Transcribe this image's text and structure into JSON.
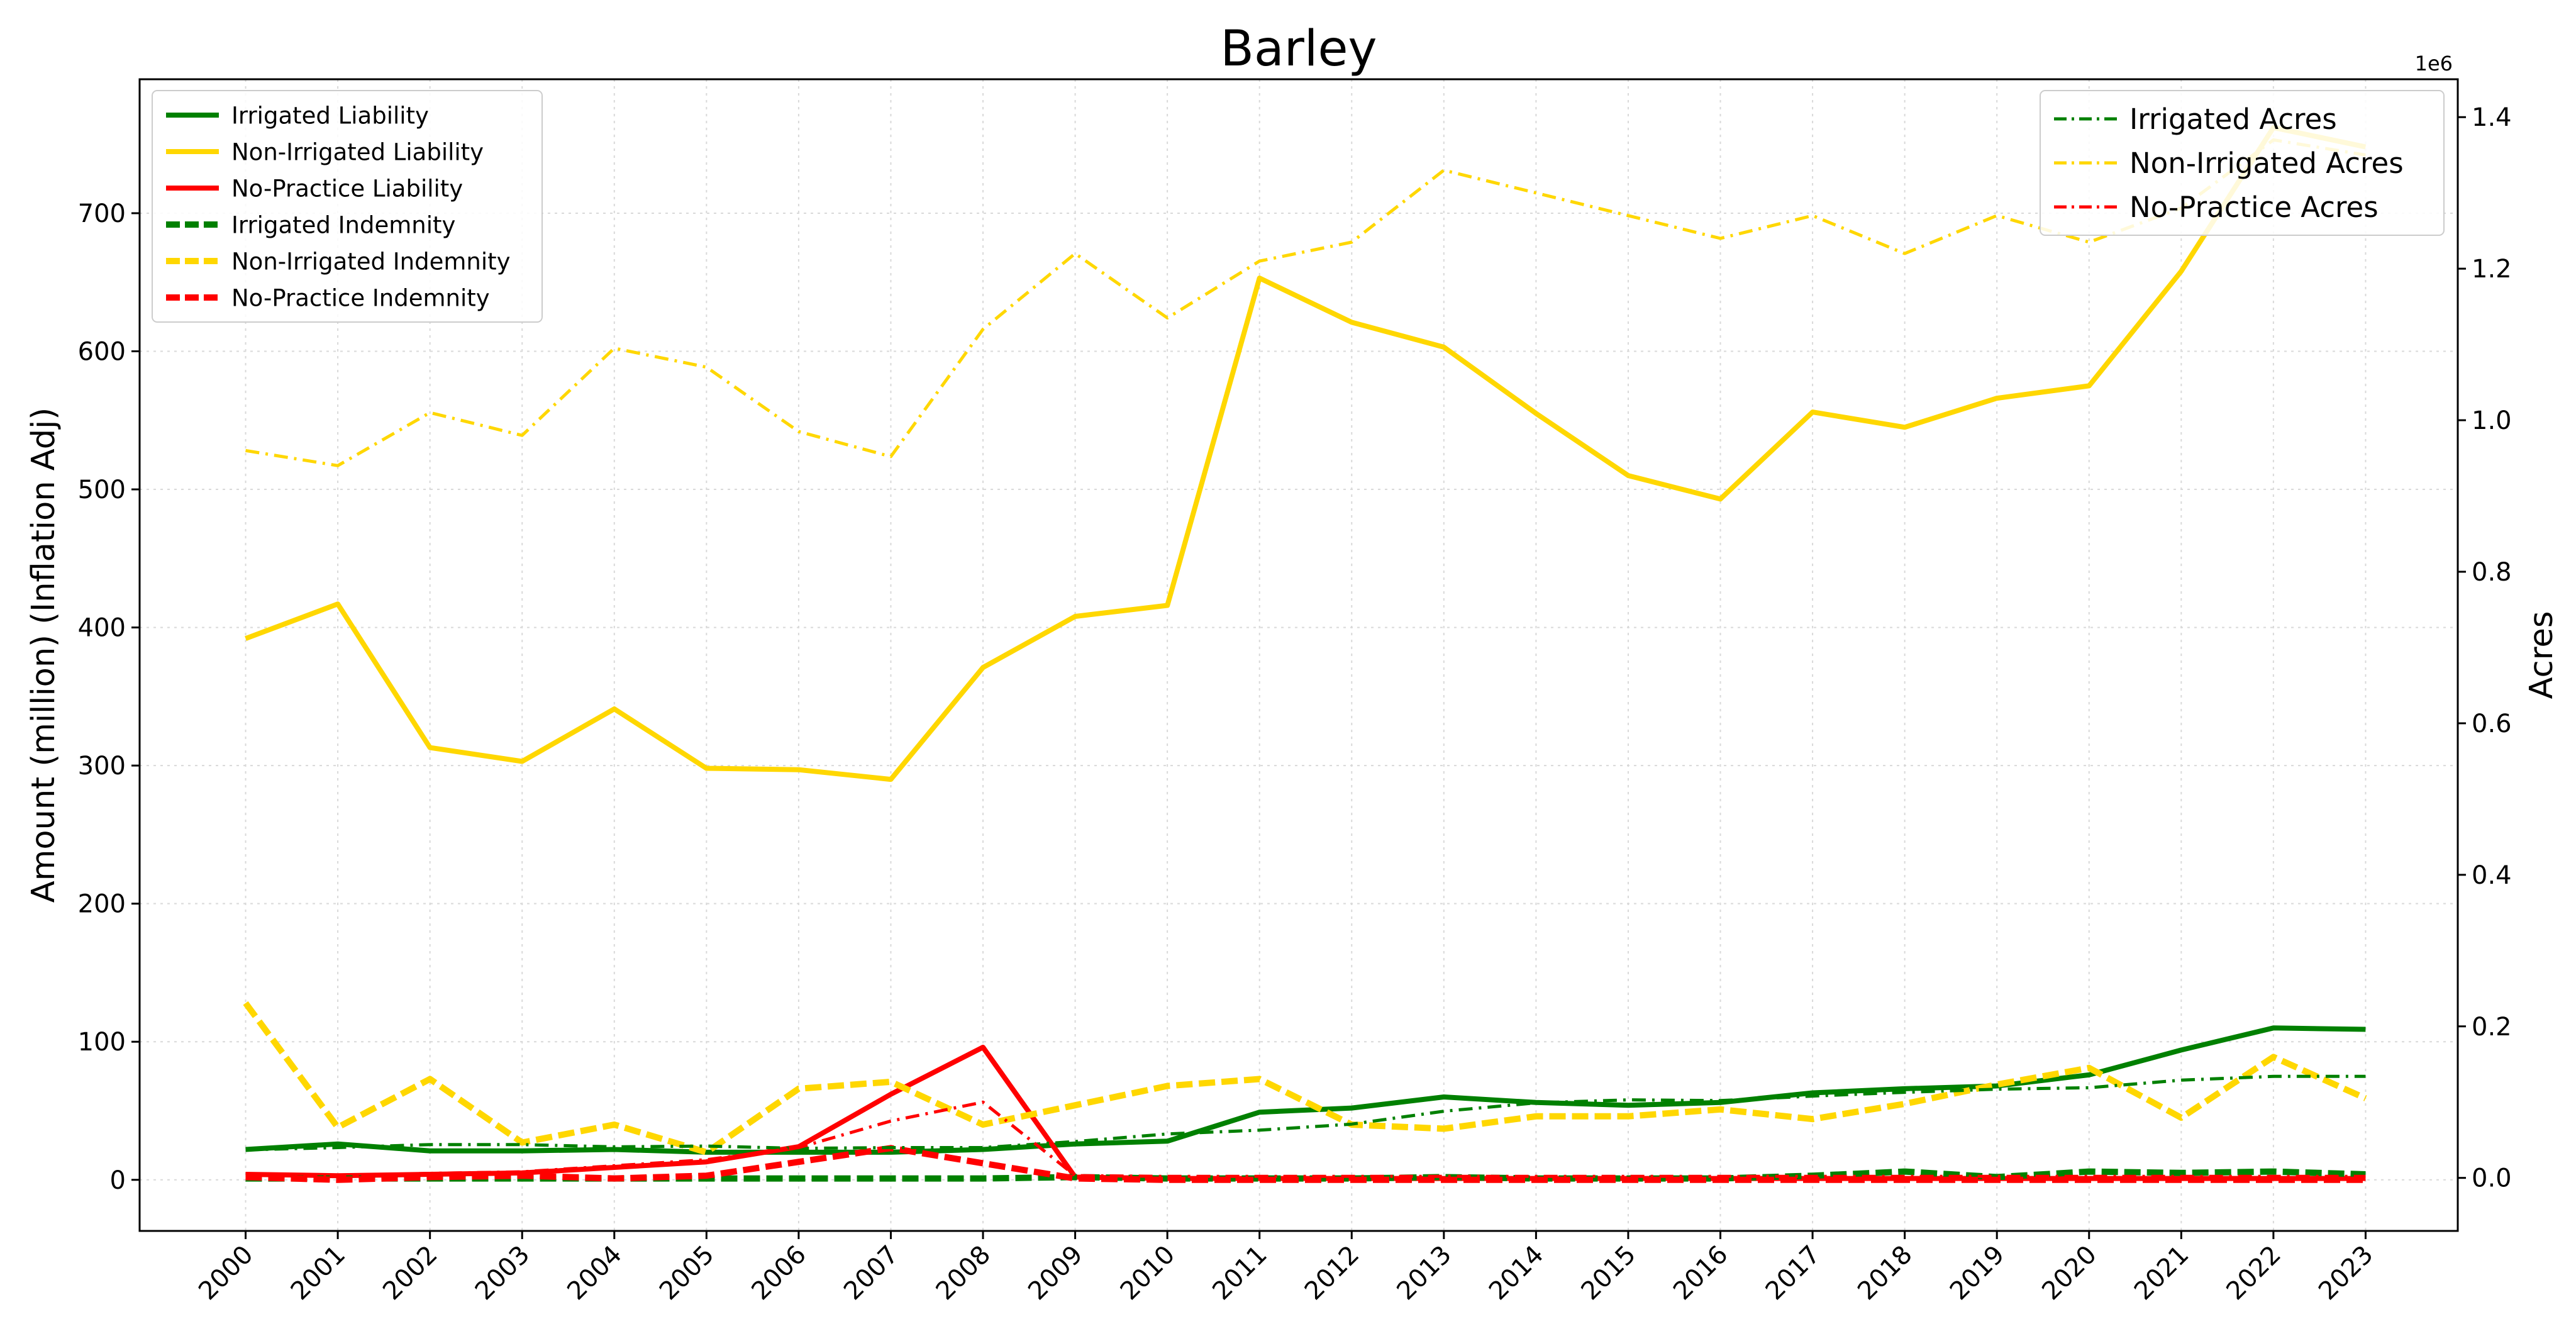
{
  "chart_data": {
    "type": "line",
    "title": "Barley",
    "x": [
      "2000",
      "2001",
      "2002",
      "2003",
      "2004",
      "2005",
      "2006",
      "2007",
      "2008",
      "2009",
      "2010",
      "2011",
      "2012",
      "2013",
      "2014",
      "2015",
      "2016",
      "2017",
      "2018",
      "2019",
      "2020",
      "2021",
      "2022",
      "2023"
    ],
    "ylabel": "Amount (million) (Inflation Adj)",
    "ylim": [
      -37,
      797
    ],
    "yticks": [
      0,
      100,
      200,
      300,
      400,
      500,
      600,
      700
    ],
    "y2label": "Acres",
    "y2_offset_text": "1e6",
    "y2lim": [
      -0.07,
      1.45
    ],
    "y2ticks": [
      0.0,
      0.2,
      0.4,
      0.6,
      0.8,
      1.0,
      1.2,
      1.4
    ],
    "grid": true,
    "legend_left_position": "upper-left",
    "legend_right_position": "upper-right",
    "series": [
      {
        "name": "Irrigated Liability",
        "axis": "left",
        "color": "#008000",
        "style": "solid",
        "values": [
          22,
          26,
          21,
          21,
          22,
          20,
          20,
          20,
          22,
          26,
          28,
          49,
          52,
          60,
          56,
          54,
          56,
          63,
          66,
          68,
          76,
          94,
          110,
          109
        ]
      },
      {
        "name": "Non-Irrigated Liability",
        "axis": "left",
        "color": "#ffd700",
        "style": "solid",
        "values": [
          392,
          417,
          313,
          303,
          341,
          298,
          297,
          290,
          371,
          408,
          416,
          653,
          621,
          603,
          555,
          510,
          493,
          556,
          545,
          566,
          575,
          658,
          762,
          748
        ]
      },
      {
        "name": "No-Practice Liability",
        "axis": "left",
        "color": "#ff0000",
        "style": "solid",
        "values": [
          4,
          3,
          4,
          5,
          9,
          13,
          24,
          62,
          96,
          2,
          1,
          1,
          1,
          1,
          1,
          1,
          1,
          1,
          1,
          1,
          1,
          1,
          1,
          1
        ]
      },
      {
        "name": "Irrigated Indemnity",
        "axis": "left",
        "color": "#008000",
        "style": "dashed",
        "values": [
          1,
          1,
          1,
          1,
          1,
          1,
          1,
          1,
          1,
          2,
          1,
          1,
          1,
          2,
          1,
          1,
          1,
          3,
          6,
          2,
          6,
          5,
          6,
          4
        ]
      },
      {
        "name": "Non-Irrigated Indemnity",
        "axis": "left",
        "color": "#ffd700",
        "style": "dashed",
        "values": [
          128,
          38,
          73,
          27,
          40,
          20,
          66,
          71,
          40,
          54,
          68,
          73,
          40,
          37,
          46,
          46,
          51,
          44,
          55,
          69,
          81,
          45,
          89,
          59
        ]
      },
      {
        "name": "No-Practice Indemnity",
        "axis": "left",
        "color": "#ff0000",
        "style": "dashed",
        "values": [
          2,
          0,
          2,
          3,
          1,
          3,
          13,
          23,
          12,
          1,
          0,
          0,
          0,
          0,
          0,
          0,
          0,
          0,
          0,
          0,
          0,
          0,
          0,
          0
        ]
      },
      {
        "name": "Irrigated Acres",
        "axis": "right",
        "color": "#008000",
        "style": "dashdot",
        "values": [
          0.037,
          0.04,
          0.044,
          0.044,
          0.041,
          0.042,
          0.039,
          0.04,
          0.04,
          0.048,
          0.058,
          0.063,
          0.071,
          0.088,
          0.099,
          0.103,
          0.102,
          0.108,
          0.113,
          0.117,
          0.119,
          0.129,
          0.134,
          0.134
        ]
      },
      {
        "name": "Non-Irrigated Acres",
        "axis": "right",
        "color": "#ffd700",
        "style": "dashdot",
        "values": [
          0.96,
          0.94,
          1.01,
          0.98,
          1.095,
          1.07,
          0.985,
          0.952,
          1.12,
          1.22,
          1.135,
          1.21,
          1.235,
          1.33,
          1.3,
          1.27,
          1.24,
          1.27,
          1.22,
          1.27,
          1.235,
          1.28,
          1.37,
          1.35
        ]
      },
      {
        "name": "No-Practice Acres",
        "axis": "right",
        "color": "#ff0000",
        "style": "dashdot",
        "values": [
          0.005,
          0.003,
          0.006,
          0.008,
          0.016,
          0.024,
          0.04,
          0.075,
          0.1,
          0.003,
          0.002,
          0.002,
          0.002,
          0.002,
          0.002,
          0.002,
          0.002,
          0.002,
          0.002,
          0.002,
          0.002,
          0.002,
          0.002,
          0.002
        ]
      }
    ]
  }
}
